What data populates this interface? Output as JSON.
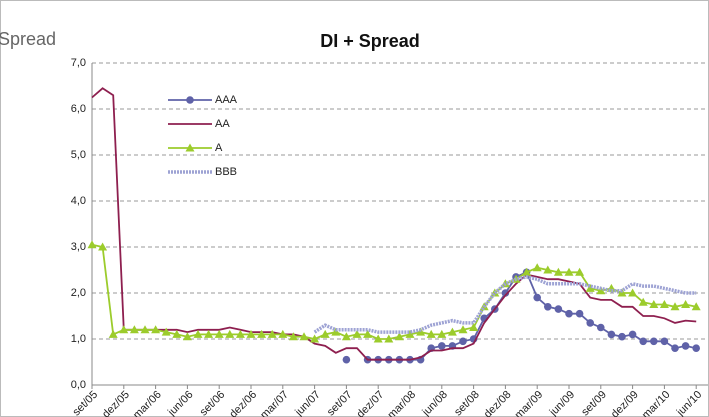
{
  "chart_data": {
    "type": "line",
    "title": "DI + Spread",
    "y_label": "Spread",
    "categories": [
      "set/05",
      null,
      null,
      "dez/05",
      null,
      null,
      "mar/06",
      null,
      null,
      "jun/06",
      null,
      null,
      "set/06",
      null,
      null,
      "dez/06",
      null,
      null,
      "mar/07",
      null,
      null,
      "jun/07",
      null,
      null,
      "set/07",
      null,
      null,
      "dez/07",
      null,
      null,
      "mar/08",
      null,
      null,
      "jun/08",
      null,
      null,
      "set/08",
      null,
      null,
      "dez/08",
      null,
      null,
      "mar/09",
      null,
      null,
      "jun/09",
      null,
      null,
      "set/09",
      null,
      null,
      "dez/09",
      null,
      null,
      "mar/10",
      null,
      null,
      "jun/10"
    ],
    "series": [
      {
        "name": "AAA",
        "color": "#5f62a8",
        "marker": "circle",
        "values": [
          null,
          null,
          null,
          null,
          null,
          null,
          null,
          null,
          null,
          null,
          null,
          null,
          null,
          null,
          null,
          null,
          null,
          null,
          null,
          null,
          null,
          null,
          null,
          null,
          0.55,
          null,
          0.55,
          0.55,
          0.55,
          0.55,
          0.55,
          0.55,
          0.8,
          0.85,
          0.85,
          0.95,
          1.0,
          1.45,
          1.65,
          2.0,
          2.35,
          2.45,
          1.9,
          1.7,
          1.65,
          1.55,
          1.55,
          1.35,
          1.25,
          1.1,
          1.05,
          1.1,
          0.95,
          0.95,
          0.95,
          0.8,
          0.85,
          0.8
        ]
      },
      {
        "name": "AA",
        "color": "#8e1f4f",
        "marker": "none",
        "values": [
          6.25,
          6.45,
          6.3,
          1.2,
          1.2,
          1.2,
          1.2,
          1.2,
          1.2,
          1.15,
          1.2,
          1.2,
          1.2,
          1.25,
          1.2,
          1.15,
          1.15,
          1.15,
          1.1,
          1.1,
          1.05,
          0.9,
          0.85,
          0.7,
          0.8,
          0.8,
          0.55,
          0.55,
          0.55,
          0.55,
          0.55,
          0.6,
          0.75,
          0.75,
          0.8,
          0.8,
          0.9,
          1.35,
          1.65,
          1.95,
          2.2,
          2.4,
          2.35,
          2.3,
          2.3,
          2.25,
          2.2,
          1.9,
          1.85,
          1.85,
          1.7,
          1.7,
          1.5,
          1.5,
          1.45,
          1.35,
          1.4,
          1.38
        ]
      },
      {
        "name": "A",
        "color": "#9ccc2c",
        "marker": "triangle",
        "values": [
          3.05,
          3.0,
          1.1,
          1.2,
          1.2,
          1.2,
          1.2,
          1.15,
          1.1,
          1.05,
          1.1,
          1.1,
          1.1,
          1.1,
          1.1,
          1.1,
          1.1,
          1.1,
          1.1,
          1.05,
          1.05,
          1.0,
          1.1,
          1.15,
          1.05,
          1.1,
          1.1,
          1.0,
          1.0,
          1.05,
          1.1,
          1.15,
          1.1,
          1.1,
          1.15,
          1.2,
          1.25,
          1.7,
          2.0,
          2.2,
          2.3,
          2.45,
          2.55,
          2.5,
          2.45,
          2.45,
          2.45,
          2.1,
          2.05,
          2.1,
          2.0,
          2.0,
          1.8,
          1.75,
          1.75,
          1.7,
          1.75,
          1.7
        ]
      },
      {
        "name": "BBB",
        "color": "#9ea3d4",
        "marker": "none",
        "style": "hatched",
        "values": [
          null,
          null,
          null,
          null,
          null,
          null,
          null,
          null,
          null,
          null,
          null,
          null,
          null,
          null,
          null,
          null,
          null,
          null,
          null,
          null,
          null,
          1.15,
          1.3,
          1.2,
          1.2,
          1.2,
          1.2,
          1.15,
          1.15,
          1.15,
          1.15,
          1.2,
          1.3,
          1.35,
          1.4,
          1.35,
          1.35,
          1.7,
          2.0,
          2.2,
          2.3,
          2.35,
          2.3,
          2.2,
          2.2,
          2.2,
          2.2,
          2.15,
          2.1,
          2.05,
          2.05,
          2.2,
          2.15,
          2.15,
          2.1,
          2.05,
          2.0,
          2.0
        ]
      }
    ],
    "ylim": [
      0,
      7
    ],
    "yticks": [
      {
        "value": 0,
        "label": "0,0"
      },
      {
        "value": 1,
        "label": "1,0"
      },
      {
        "value": 2,
        "label": "2,0"
      },
      {
        "value": 3,
        "label": "3,0"
      },
      {
        "value": 4,
        "label": "4,0"
      },
      {
        "value": 5,
        "label": "5,0"
      },
      {
        "value": 6,
        "label": "6,0"
      },
      {
        "value": 7,
        "label": "7,0"
      }
    ],
    "grid": true
  }
}
